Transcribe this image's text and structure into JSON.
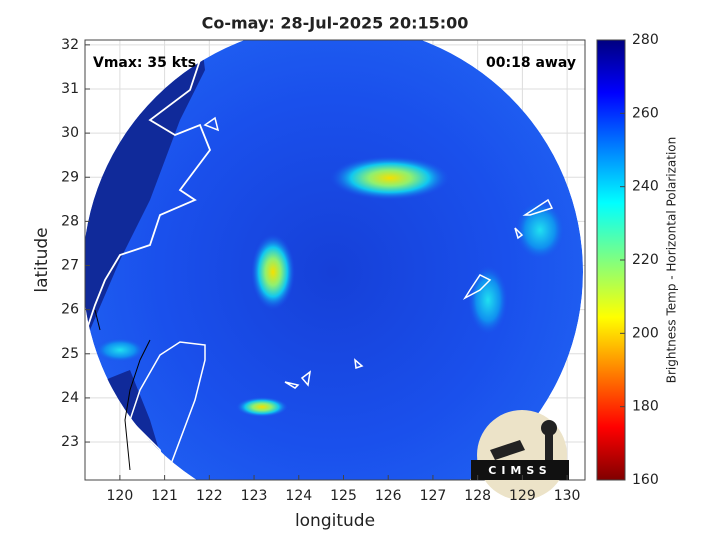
{
  "chart_data": {
    "type": "map",
    "title": "Co-may: 28-Jul-2025 20:15:00",
    "annotations": [
      "Vmax: 35 kts",
      "00:18 away"
    ],
    "xlabel": "longitude",
    "ylabel": "latitude",
    "xlim": [
      119.22,
      130.4
    ],
    "ylim": [
      22.14,
      32.11
    ],
    "xticks": [
      120,
      121,
      122,
      123,
      124,
      125,
      126,
      127,
      128,
      129,
      130
    ],
    "yticks": [
      23,
      24,
      25,
      26,
      27,
      28,
      29,
      30,
      31,
      32
    ],
    "grid": true,
    "colorbar": {
      "label": "Brightness Temp - Horizontal Polarization",
      "lim": [
        160,
        280
      ],
      "ticks": [
        160,
        180,
        200,
        220,
        240,
        260,
        280
      ]
    },
    "logo": "CIMSS"
  }
}
